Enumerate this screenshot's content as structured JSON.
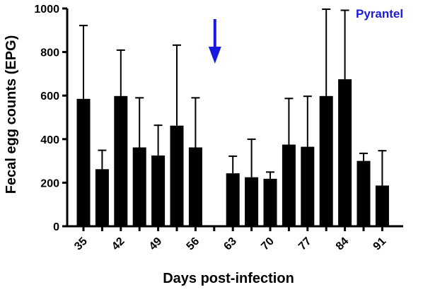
{
  "chart_data": {
    "type": "bar",
    "xlabel": "Days post-infection",
    "ylabel": "Fecal egg counts (EPG)",
    "ylim": [
      0,
      1000
    ],
    "yticks": [
      "0",
      "200",
      "400",
      "600",
      "800",
      "1000"
    ],
    "x_tick_labels": [
      "35",
      "42",
      "49",
      "56",
      "63",
      "70",
      "77",
      "84",
      "91"
    ],
    "days": [
      35,
      38,
      42,
      45,
      49,
      52,
      56,
      59,
      63,
      66,
      70,
      73,
      77,
      80,
      84,
      87,
      91
    ],
    "values": [
      585,
      262,
      598,
      362,
      325,
      462,
      362,
      0,
      243,
      225,
      218,
      375,
      365,
      598,
      675,
      300,
      187
    ],
    "error_upper": [
      925,
      352,
      812,
      593,
      467,
      835,
      593,
      0,
      325,
      403,
      252,
      590,
      600,
      1000,
      995,
      338,
      350
    ],
    "grid": false,
    "legend": "none",
    "bar_color": "#000000",
    "annotation": {
      "text": "Pyrantel",
      "color": "#1a1adf",
      "arrow_day": 59,
      "arrow_color": "#1a1adf"
    }
  }
}
